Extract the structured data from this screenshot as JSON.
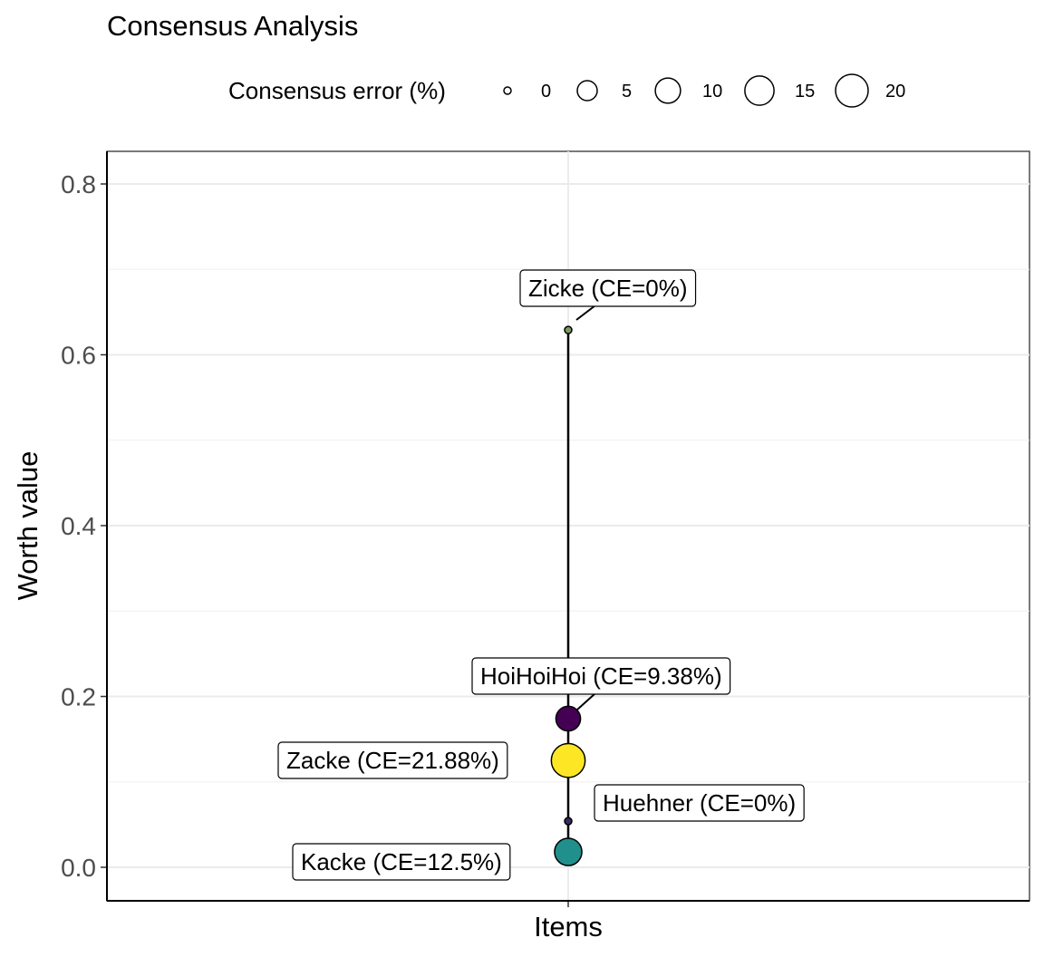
{
  "chart_data": {
    "type": "scatter",
    "title": "Consensus Analysis",
    "xlabel": "Items",
    "ylabel": "Worth value",
    "ylim": [
      -0.04,
      0.84
    ],
    "y_ticks": [
      0.0,
      0.2,
      0.4,
      0.6,
      0.8
    ],
    "y_tick_labels": [
      "0.0",
      "0.2",
      "0.4",
      "0.6",
      "0.8"
    ],
    "x_categories": [
      "Items"
    ],
    "grid": true,
    "legend": {
      "title": "Consensus error (%)",
      "position": "top",
      "size_breaks": [
        0,
        5,
        10,
        15,
        20
      ],
      "size_labels": [
        "0",
        "5",
        "10",
        "15",
        "20"
      ]
    },
    "points": [
      {
        "item": "Zicke",
        "worth": 0.629,
        "consensus_error": 0,
        "label": "Zicke (CE=0%)",
        "color": "#7a9a63"
      },
      {
        "item": "HoiHoiHoi",
        "worth": 0.174,
        "consensus_error": 9.38,
        "label": "HoiHoiHoi (CE=9.38%)",
        "color": "#440154"
      },
      {
        "item": "Zacke",
        "worth": 0.125,
        "consensus_error": 21.88,
        "label": "Zacke (CE=21.88%)",
        "color": "#fde725"
      },
      {
        "item": "Huehner",
        "worth": 0.054,
        "consensus_error": 0,
        "label": "Huehner (CE=0%)",
        "color": "#3b2a5e"
      },
      {
        "item": "Kacke",
        "worth": 0.018,
        "consensus_error": 12.5,
        "label": "Kacke (CE=12.5%)",
        "color": "#21908c"
      }
    ]
  }
}
